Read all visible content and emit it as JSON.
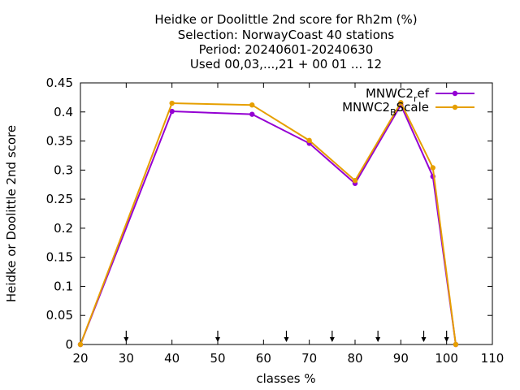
{
  "chart_data": {
    "type": "line",
    "title_lines": [
      "Heidke or Doolittle 2nd score  for Rh2m (%)",
      "Selection: NorwayCoast     40 stations",
      "Period: 20240601-20240630",
      "Used 00,03,...,21 + 00 01 ... 12"
    ],
    "xlabel": "classes %",
    "ylabel": "Heidke or Doolittle 2nd score",
    "xlim": [
      20,
      110
    ],
    "ylim": [
      0,
      0.45
    ],
    "xticks": [
      "20",
      "30",
      "40",
      "50",
      "60",
      "70",
      "80",
      "90",
      "100",
      "110"
    ],
    "yticks": [
      "0",
      "0.05",
      "0.1",
      "0.15",
      "0.2",
      "0.25",
      "0.3",
      "0.35",
      "0.4",
      "0.45"
    ],
    "grid": false,
    "legend_position": "top-right",
    "series": [
      {
        "name": "MNWC2_ref",
        "legend_base": "MNWC2",
        "legend_sub": "r",
        "legend_rest": "ef",
        "color": "#9400d3",
        "x": [
          20,
          40,
          57.5,
          70,
          80,
          90,
          97,
          102
        ],
        "y": [
          0,
          0.401,
          0.396,
          0.346,
          0.277,
          0.412,
          0.289,
          0
        ]
      },
      {
        "name": "MNWC2_BScale",
        "legend_base": "MNWC2",
        "legend_sub": "B",
        "legend_rest": "Scale",
        "color": "#e69f00",
        "x": [
          20,
          40,
          57.5,
          70,
          80,
          90,
          97,
          102
        ],
        "y": [
          0,
          0.415,
          0.412,
          0.351,
          0.282,
          0.416,
          0.304,
          0
        ]
      }
    ],
    "arrow_markers_x": [
      30,
      50,
      65,
      75,
      85,
      95,
      100
    ]
  }
}
